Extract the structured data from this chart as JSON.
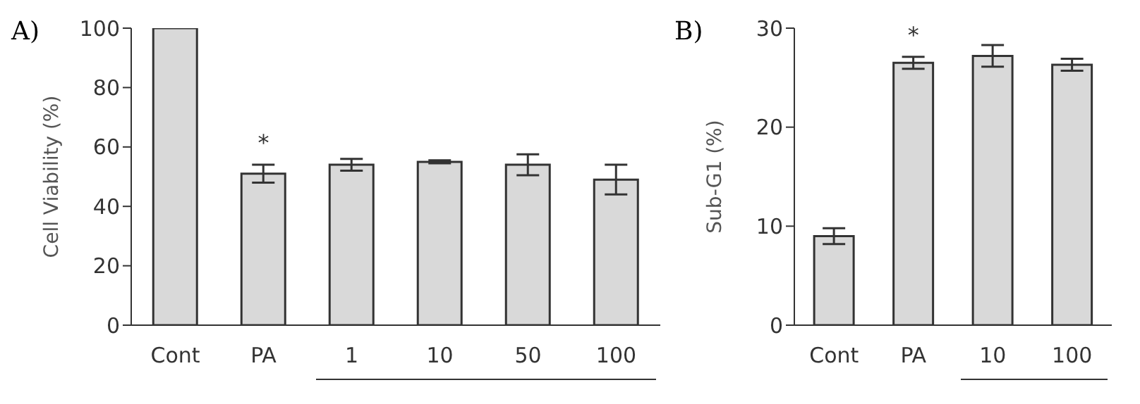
{
  "chart_data": [
    {
      "type": "bar",
      "title": "A)",
      "ylabel": "Cell Viability (%)",
      "categories": [
        "Cont",
        "PA",
        "1",
        "10",
        "50",
        "100"
      ],
      "values": [
        100,
        51,
        54,
        55,
        54,
        49
      ],
      "errors": [
        null,
        3,
        2,
        0.5,
        3.5,
        5
      ],
      "color": "#d9d9d9",
      "ylim": [
        0,
        100
      ],
      "yticks": [
        0,
        20,
        40,
        60,
        80,
        100
      ],
      "grid": false,
      "annotations": [
        {
          "text": "*",
          "x": "PA",
          "y": 54
        }
      ]
    },
    {
      "type": "bar",
      "title": "B)",
      "ylabel": "Sub-G1 (%)",
      "categories": [
        "Cont",
        "PA",
        "10",
        "100"
      ],
      "values": [
        9,
        26.5,
        27.2,
        26.3
      ],
      "errors": [
        0.8,
        0.6,
        1.1,
        0.6
      ],
      "color": "#d9d9d9",
      "ylim": [
        0,
        30
      ],
      "yticks": [
        0,
        10,
        20,
        30
      ],
      "grid": false,
      "annotations": [
        {
          "text": "*",
          "x": "PA",
          "y": 27.1
        }
      ]
    }
  ]
}
